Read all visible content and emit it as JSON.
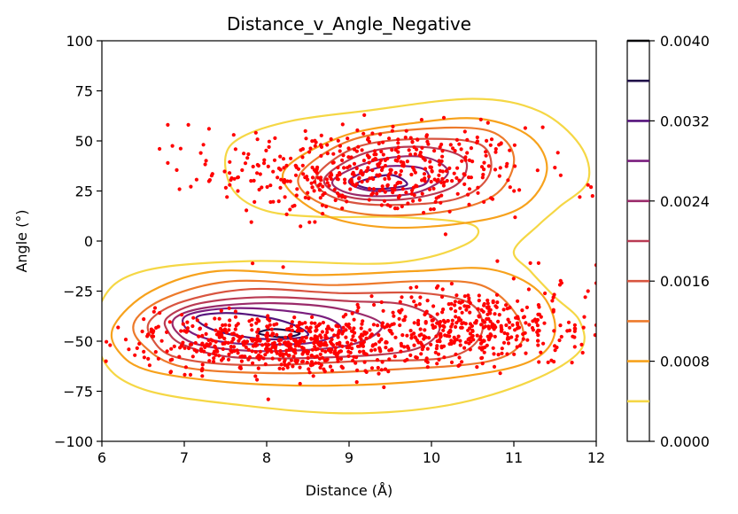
{
  "chart_data": {
    "type": "scatter",
    "title": "Distance_v_Angle_Negative",
    "xlabel": "Distance (Å)",
    "ylabel": "Angle (°)",
    "xlim": [
      6,
      12
    ],
    "ylim": [
      -100,
      100
    ],
    "x_ticks": [
      "6",
      "7",
      "8",
      "9",
      "10",
      "11",
      "12"
    ],
    "y_ticks": [
      "−100",
      "−75",
      "−50",
      "−25",
      "0",
      "25",
      "50",
      "75",
      "100"
    ],
    "colorbar": {
      "range": [
        0.0,
        0.004
      ],
      "tick_labels": [
        "0.0000",
        "0.0008",
        "0.0016",
        "0.0024",
        "0.0032",
        "0.0040"
      ],
      "levels": [
        0.0004,
        0.0008,
        0.0012,
        0.0016,
        0.002,
        0.0024,
        0.0028,
        0.0032,
        0.0036,
        0.004
      ],
      "colors": [
        "#f5d745",
        "#f7a21c",
        "#ed7a2b",
        "#d8543f",
        "#b93a53",
        "#9a2a6a",
        "#7a1d7e",
        "#55137c",
        "#1f0c48",
        "#000004"
      ]
    },
    "series": [
      {
        "marker_color": "#ff0000",
        "clusters": [
          {
            "cx": 9.3,
            "cy": 35,
            "sx": 0.95,
            "sy": 11,
            "n": 470
          },
          {
            "cx": 8.4,
            "cy": -52,
            "sx": 0.75,
            "sy": 7,
            "n": 520
          },
          {
            "cx": 10.4,
            "cy": -42,
            "sx": 0.55,
            "sy": 9,
            "n": 330
          },
          {
            "cx": 11.5,
            "cy": -45,
            "sx": 0.35,
            "sy": 10,
            "n": 60
          },
          {
            "cx": 7.2,
            "cy": -48,
            "sx": 0.45,
            "sy": 8,
            "n": 70
          }
        ],
        "sample_points": [
          [
            6.8,
            58
          ],
          [
            7.05,
            58
          ],
          [
            7.3,
            56
          ],
          [
            6.7,
            46
          ],
          [
            6.8,
            39
          ],
          [
            7.2,
            44
          ],
          [
            7.6,
            53
          ],
          [
            7.55,
            34
          ],
          [
            7.65,
            25
          ],
          [
            11.8,
            22
          ],
          [
            11.9,
            28
          ],
          [
            6.05,
            -60
          ],
          [
            6.1,
            -52
          ],
          [
            6.4,
            -57
          ],
          [
            8.2,
            -13
          ],
          [
            10.8,
            -10
          ],
          [
            11.2,
            -11
          ],
          [
            12.0,
            -12
          ],
          [
            12.0,
            -21
          ],
          [
            11.9,
            -25
          ],
          [
            11.3,
            -11
          ],
          [
            12.0,
            -42
          ]
        ]
      }
    ],
    "contours": [
      {
        "level": 0.0004,
        "color": "#f5d745",
        "rings": [
          [
            [
              7.5,
              42
            ],
            [
              7.7,
              52
            ],
            [
              8.3,
              60
            ],
            [
              9.2,
              65
            ],
            [
              10.5,
              71
            ],
            [
              11.3,
              65
            ],
            [
              11.8,
              48
            ],
            [
              11.9,
              30
            ],
            [
              11.55,
              17
            ],
            [
              11.3,
              8
            ],
            [
              11.0,
              -5
            ],
            [
              11.2,
              -15
            ],
            [
              11.5,
              -28
            ],
            [
              11.8,
              -40
            ],
            [
              11.8,
              -55
            ],
            [
              11.2,
              -70
            ],
            [
              10.2,
              -82
            ],
            [
              9.0,
              -86
            ],
            [
              7.7,
              -82
            ],
            [
              6.5,
              -74
            ],
            [
              6.0,
              -58
            ],
            [
              6.0,
              -30
            ],
            [
              6.5,
              -15
            ],
            [
              7.8,
              -10
            ],
            [
              9.5,
              -11
            ],
            [
              10.4,
              -2
            ],
            [
              10.5,
              8
            ],
            [
              9.6,
              12
            ],
            [
              8.7,
              12
            ],
            [
              8.0,
              15
            ],
            [
              7.6,
              25
            ]
          ]
        ]
      },
      {
        "level": 0.0008,
        "color": "#f7a21c",
        "rings": [
          [
            [
              8.2,
              34
            ],
            [
              8.9,
              52
            ],
            [
              9.8,
              59
            ],
            [
              10.6,
              61
            ],
            [
              11.2,
              52
            ],
            [
              11.4,
              35
            ],
            [
              11.1,
              17
            ],
            [
              10.4,
              9
            ],
            [
              9.4,
              7
            ],
            [
              8.6,
              15
            ]
          ],
          [
            [
              6.15,
              -42
            ],
            [
              6.6,
              -25
            ],
            [
              7.4,
              -15
            ],
            [
              8.6,
              -17
            ],
            [
              9.8,
              -15
            ],
            [
              10.7,
              -14
            ],
            [
              11.3,
              -25
            ],
            [
              11.5,
              -45
            ],
            [
              11.2,
              -60
            ],
            [
              10.3,
              -68
            ],
            [
              9.0,
              -72
            ],
            [
              7.7,
              -71
            ],
            [
              6.6,
              -65
            ],
            [
              6.2,
              -55
            ]
          ]
        ]
      },
      {
        "level": 0.0012,
        "color": "#ed7a2b",
        "rings": [
          [
            [
              8.4,
              33
            ],
            [
              9.0,
              50
            ],
            [
              9.9,
              56
            ],
            [
              10.7,
              55
            ],
            [
              11.0,
              42
            ],
            [
              10.8,
              24
            ],
            [
              10.2,
              15
            ],
            [
              9.3,
              13
            ],
            [
              8.6,
              20
            ]
          ],
          [
            [
              6.4,
              -40
            ],
            [
              6.8,
              -28
            ],
            [
              7.6,
              -20
            ],
            [
              8.8,
              -22
            ],
            [
              9.9,
              -20
            ],
            [
              10.6,
              -22
            ],
            [
              11.0,
              -35
            ],
            [
              11.1,
              -50
            ],
            [
              10.7,
              -60
            ],
            [
              9.6,
              -64
            ],
            [
              8.2,
              -66
            ],
            [
              7.0,
              -63
            ],
            [
              6.5,
              -52
            ]
          ]
        ]
      },
      {
        "level": 0.0016,
        "color": "#d8543f",
        "rings": [
          [
            [
              8.6,
              32
            ],
            [
              9.1,
              47
            ],
            [
              9.9,
              51
            ],
            [
              10.6,
              48
            ],
            [
              10.7,
              33
            ],
            [
              10.3,
              21
            ],
            [
              9.4,
              18
            ],
            [
              8.8,
              22
            ]
          ],
          [
            [
              6.6,
              -39
            ],
            [
              7.0,
              -30
            ],
            [
              7.8,
              -24
            ],
            [
              8.9,
              -26
            ],
            [
              9.9,
              -26
            ],
            [
              10.5,
              -32
            ],
            [
              10.6,
              -47
            ],
            [
              10.2,
              -58
            ],
            [
              9.1,
              -60
            ],
            [
              7.8,
              -62
            ],
            [
              6.9,
              -58
            ],
            [
              6.6,
              -48
            ]
          ]
        ]
      },
      {
        "level": 0.002,
        "color": "#b93a53",
        "rings": [
          [
            [
              8.7,
              31
            ],
            [
              9.2,
              44
            ],
            [
              9.9,
              47
            ],
            [
              10.4,
              41
            ],
            [
              10.3,
              28
            ],
            [
              9.7,
              21
            ],
            [
              9.0,
              22
            ]
          ],
          [
            [
              6.8,
              -38
            ],
            [
              7.2,
              -31
            ],
            [
              8.0,
              -28
            ],
            [
              9.0,
              -30
            ],
            [
              9.7,
              -32
            ],
            [
              10.1,
              -42
            ],
            [
              9.8,
              -54
            ],
            [
              8.8,
              -58
            ],
            [
              7.6,
              -58
            ],
            [
              7.0,
              -52
            ],
            [
              6.8,
              -45
            ]
          ]
        ]
      },
      {
        "level": 0.0024,
        "color": "#9a2a6a",
        "rings": [
          [
            [
              8.8,
              30
            ],
            [
              9.3,
              40
            ],
            [
              9.9,
              42
            ],
            [
              10.2,
              34
            ],
            [
              9.8,
              24
            ],
            [
              9.1,
              23
            ]
          ],
          [
            [
              6.9,
              -38
            ],
            [
              7.3,
              -33
            ],
            [
              8.1,
              -31
            ],
            [
              8.9,
              -34
            ],
            [
              9.4,
              -42
            ],
            [
              9.0,
              -52
            ],
            [
              8.0,
              -55
            ],
            [
              7.2,
              -52
            ],
            [
              6.9,
              -45
            ]
          ]
        ]
      },
      {
        "level": 0.0028,
        "color": "#7a1d7e",
        "rings": [
          [
            [
              9.0,
              30
            ],
            [
              9.4,
              37
            ],
            [
              9.9,
              36
            ],
            [
              9.9,
              28
            ],
            [
              9.3,
              25
            ]
          ],
          [
            [
              7.0,
              -38
            ],
            [
              7.4,
              -34
            ],
            [
              8.0,
              -34
            ],
            [
              8.7,
              -38
            ],
            [
              8.9,
              -45
            ],
            [
              8.5,
              -51
            ],
            [
              7.6,
              -51
            ],
            [
              7.1,
              -46
            ]
          ]
        ]
      },
      {
        "level": 0.0032,
        "color": "#55137c",
        "rings": [
          [
            [
              9.1,
              29
            ],
            [
              9.5,
              33
            ],
            [
              9.7,
              28
            ],
            [
              9.3,
              26
            ]
          ],
          [
            [
              7.15,
              -38
            ],
            [
              7.6,
              -36
            ],
            [
              8.2,
              -40
            ],
            [
              8.5,
              -47
            ],
            [
              8.0,
              -49
            ],
            [
              7.4,
              -45
            ]
          ]
        ]
      },
      {
        "level": 0.0036,
        "color": "#1f0c48",
        "rings": [
          [
            [
              8.1,
              -44
            ],
            [
              8.4,
              -46
            ],
            [
              8.2,
              -48
            ],
            [
              7.9,
              -46
            ]
          ]
        ]
      }
    ]
  }
}
